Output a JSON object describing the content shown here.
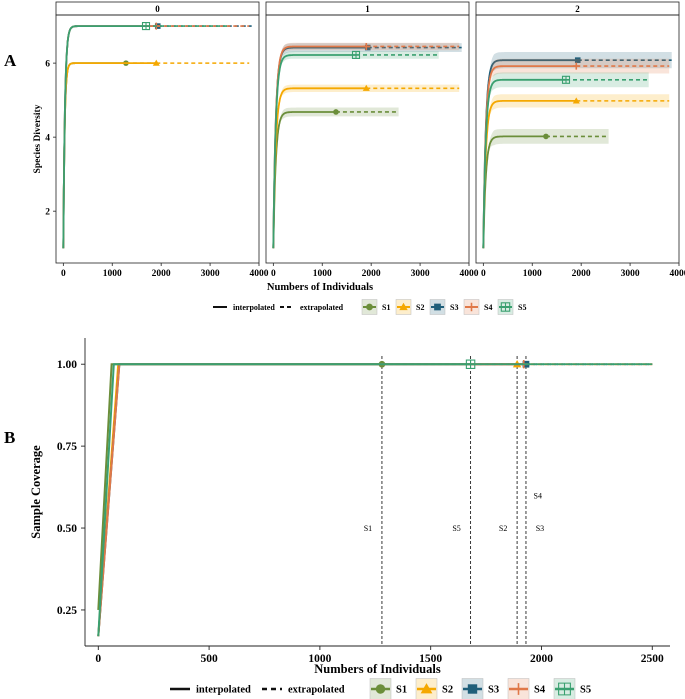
{
  "figure": {
    "panel_a_label": "A",
    "panel_b_label": "B"
  },
  "legend": {
    "interpolated": "interpolated",
    "extrapolated": "extrapolated",
    "samples": [
      {
        "name": "S1",
        "color": "#6b8e3a",
        "marker": "circle"
      },
      {
        "name": "S2",
        "color": "#f5a800",
        "marker": "triangle"
      },
      {
        "name": "S3",
        "color": "#1f5f7a",
        "marker": "square"
      },
      {
        "name": "S4",
        "color": "#e07848",
        "marker": "plus"
      },
      {
        "name": "S5",
        "color": "#3aa070",
        "marker": "boxplus"
      }
    ]
  },
  "chart_data": [
    {
      "type": "line",
      "id": "A",
      "ylabel": "Species Diversity",
      "xlabel": "Numbers of Individuals",
      "ylim": [
        0.6,
        7.3
      ],
      "xlim": [
        -150,
        4000
      ],
      "yticks": [
        2,
        4,
        6
      ],
      "xticks": [
        0,
        1000,
        2000,
        3000,
        4000
      ],
      "facets": [
        {
          "strip": "0",
          "series": [
            {
              "name": "S1",
              "asymptote": 6,
              "start": 1,
              "knee": 80,
              "observed_n": 1280,
              "extrap_end": 1900,
              "band": 0
            },
            {
              "name": "S2",
              "asymptote": 6,
              "start": 1,
              "knee": 80,
              "observed_n": 1900,
              "extrap_end": 3800,
              "band": 0
            },
            {
              "name": "S3",
              "asymptote": 7,
              "start": 1,
              "knee": 100,
              "observed_n": 1930,
              "extrap_end": 3850,
              "band": 0
            },
            {
              "name": "S4",
              "asymptote": 7,
              "start": 1,
              "knee": 100,
              "observed_n": 1900,
              "extrap_end": 3800,
              "band": 0
            },
            {
              "name": "S5",
              "asymptote": 7,
              "start": 1,
              "knee": 100,
              "observed_n": 1690,
              "extrap_end": 3380,
              "band": 0
            }
          ]
        },
        {
          "strip": "1",
          "series": [
            {
              "name": "S1",
              "asymptote": 4.68,
              "start": 1,
              "knee": 150,
              "observed_n": 1280,
              "extrap_end": 2560,
              "band": 0.12
            },
            {
              "name": "S2",
              "asymptote": 5.32,
              "start": 1,
              "knee": 150,
              "observed_n": 1900,
              "extrap_end": 3800,
              "band": 0.1
            },
            {
              "name": "S3",
              "asymptote": 6.42,
              "start": 1,
              "knee": 150,
              "observed_n": 1930,
              "extrap_end": 3850,
              "band": 0.12
            },
            {
              "name": "S4",
              "asymptote": 6.45,
              "start": 1,
              "knee": 150,
              "observed_n": 1900,
              "extrap_end": 3800,
              "band": 0.1
            },
            {
              "name": "S5",
              "asymptote": 6.22,
              "start": 1,
              "knee": 150,
              "observed_n": 1690,
              "extrap_end": 3380,
              "band": 0.1
            }
          ]
        },
        {
          "strip": "2",
          "series": [
            {
              "name": "S1",
              "asymptote": 4.02,
              "start": 1,
              "knee": 150,
              "observed_n": 1280,
              "extrap_end": 2560,
              "band": 0.2
            },
            {
              "name": "S2",
              "asymptote": 4.98,
              "start": 1,
              "knee": 150,
              "observed_n": 1900,
              "extrap_end": 3800,
              "band": 0.18
            },
            {
              "name": "S3",
              "asymptote": 6.08,
              "start": 1,
              "knee": 150,
              "observed_n": 1930,
              "extrap_end": 3850,
              "band": 0.22
            },
            {
              "name": "S4",
              "asymptote": 5.92,
              "start": 1,
              "knee": 150,
              "observed_n": 1900,
              "extrap_end": 3800,
              "band": 0.2
            },
            {
              "name": "S5",
              "asymptote": 5.55,
              "start": 1,
              "knee": 150,
              "observed_n": 1690,
              "extrap_end": 3380,
              "band": 0.2
            }
          ]
        }
      ]
    },
    {
      "type": "line",
      "id": "B",
      "ylabel": "Sample Coverage",
      "xlabel": "Numbers of Individuals",
      "ylim": [
        0.14,
        1.08
      ],
      "xlim": [
        -60,
        2580
      ],
      "yticks": [
        0.25,
        0.5,
        0.75,
        1.0
      ],
      "ytick_labels": [
        "0.25",
        "0.50",
        "0.75",
        "1.00"
      ],
      "xticks": [
        0,
        500,
        1000,
        1500,
        2000,
        2500
      ],
      "series": [
        {
          "name": "S1",
          "start": 0.25,
          "knee": 60,
          "observed_n": 1280,
          "extrap_end": 2500
        },
        {
          "name": "S2",
          "start": 0.17,
          "knee": 90,
          "observed_n": 1890,
          "extrap_end": 2500
        },
        {
          "name": "S3",
          "start": 0.17,
          "knee": 95,
          "observed_n": 1930,
          "extrap_end": 2500
        },
        {
          "name": "S4",
          "start": 0.17,
          "knee": 95,
          "observed_n": 1920,
          "extrap_end": 2500
        },
        {
          "name": "S5",
          "start": 0.17,
          "knee": 70,
          "observed_n": 1680,
          "extrap_end": 2500
        }
      ],
      "reference_lines": [
        {
          "label": "S1",
          "x": 1280,
          "label_y": 0.5
        },
        {
          "label": "S5",
          "x": 1680,
          "label_y": 0.5
        },
        {
          "label": "S2",
          "x": 1890,
          "label_y": 0.5
        },
        {
          "label": "S3",
          "x": 1930,
          "label_y": 0.5
        },
        {
          "label": "S4",
          "x": 1920,
          "label_y": 0.6
        }
      ]
    }
  ]
}
